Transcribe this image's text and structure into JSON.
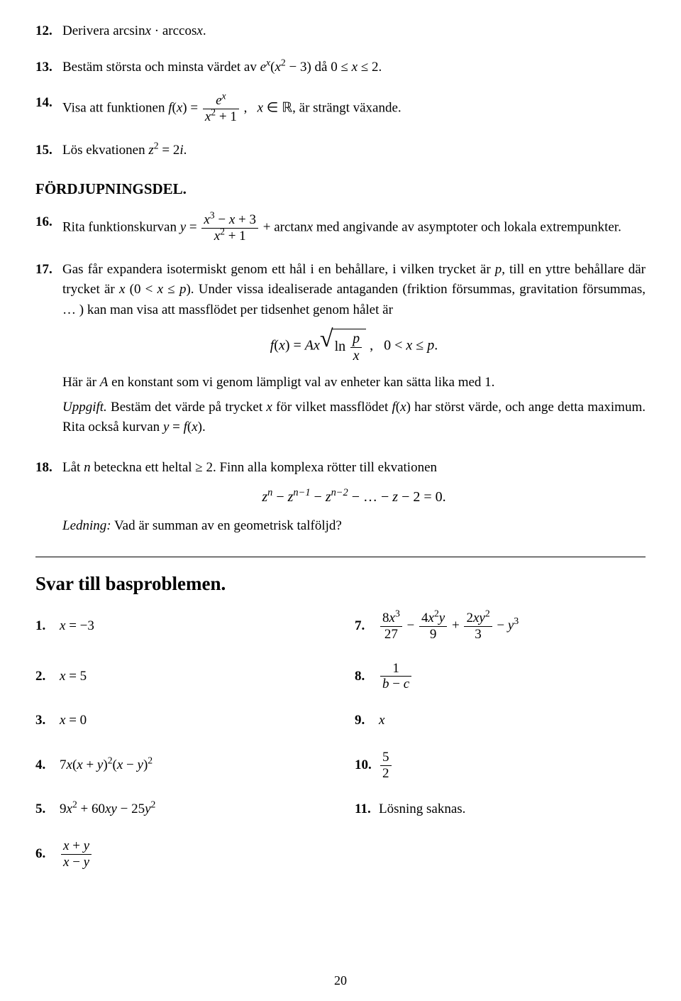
{
  "problems": [
    {
      "num": "12.",
      "text_before": "Derivera ",
      "expr": "arcsin<span class='math'>x</span> · arccos<span class='math'>x</span>."
    },
    {
      "num": "13.",
      "text": "Bestäm största och minsta värdet av <span class='math'>e<sup>x</sup></span>(<span class='math'>x</span><sup>2</sup> − 3) då 0 ≤ <span class='math'>x</span> ≤ 2."
    },
    {
      "num": "14.",
      "text": "Visa att funktionen <span class='math'>f</span>(<span class='math'>x</span>) = <span class='frac'><span class='num'><span class='math'>e<sup>x</sup></span></span><span class='den'><span class='math'>x</span><sup>2</sup> + 1</span></span> ,&nbsp;&nbsp; <span class='math'>x</span> ∈ ℝ, är strängt växande."
    },
    {
      "num": "15.",
      "text": "Lös ekvationen <span class='math'>z</span><sup>2</sup> = 2<span class='math'>i</span>."
    }
  ],
  "section_heading": "FÖRDJUPNINGSDEL.",
  "deep_problems": [
    {
      "num": "16.",
      "text": "Rita funktionskurvan <span class='math'>y</span> = <span class='frac'><span class='num'><span class='math'>x</span><sup>3</sup> − <span class='math'>x</span> + 3</span><span class='den'><span class='math'>x</span><sup>2</sup> + 1</span></span> + arctan<span class='math'>x</span> med angivande av asymptoter och lokala extrempunkter."
    },
    {
      "num": "17.",
      "paras": [
        "Gas får expandera isotermiskt genom ett hål i en behållare, i vilken trycket är <span class='math'>p</span>, till en yttre behållare där trycket är <span class='math'>x</span> (0 &lt; <span class='math'>x</span> ≤ <span class='math'>p</span>). Under vissa idealiserade antaganden (friktion försummas, gravitation försummas, … ) kan man visa att massflödet per tidsenhet genom hålet är"
      ],
      "display": "<span class='math'>f</span>(<span class='math'>x</span>) = <span class='math'>Ax</span><span class='sqrt'><span class='rad'>√</span><span class='body'>ln <span class='frac'><span class='num'><span class='math'>p</span></span><span class='den'><span class='math'>x</span></span></span></span></span> ,&nbsp;&nbsp; 0 &lt; <span class='math'>x</span> ≤ <span class='math'>p</span>.",
      "after": [
        "Här är <span class='math'>A</span> en konstant som vi genom lämpligt val av enheter kan sätta lika med 1.",
        "<span class='math'>Uppgift.</span> Bestäm det värde på trycket <span class='math'>x</span> för vilket massflödet <span class='math'>f</span>(<span class='math'>x</span>) har störst värde, och ange detta maximum. Rita också kurvan <span class='math'>y</span> = <span class='math'>f</span>(<span class='math'>x</span>)."
      ]
    },
    {
      "num": "18.",
      "text": "Låt <span class='math'>n</span> beteckna ett heltal ≥ 2. Finn alla komplexa rötter till ekvationen",
      "display": "<span class='math'>z<sup>n</sup></span> − <span class='math'>z<sup>n−1</sup></span> − <span class='math'>z<sup>n−2</sup></span> − … − <span class='math'>z</span> − 2 = 0.",
      "hint_label": "Ledning:",
      "hint_text": " Vad är summan av en geometrisk talföljd?"
    }
  ],
  "answers_heading": "Svar till basproblemen.",
  "answers_left": [
    {
      "num": "1.",
      "html": "<span class='math'>x</span> = −3"
    },
    {
      "num": "2.",
      "html": "<span class='math'>x</span> = 5"
    },
    {
      "num": "3.",
      "html": "<span class='math'>x</span> = 0"
    },
    {
      "num": "4.",
      "html": "7<span class='math'>x</span>(<span class='math'>x</span> + <span class='math'>y</span>)<sup>2</sup>(<span class='math'>x</span> − <span class='math'>y</span>)<sup>2</sup>"
    },
    {
      "num": "5.",
      "html": "9<span class='math'>x</span><sup>2</sup> + 60<span class='math'>xy</span> − 25<span class='math'>y</span><sup>2</sup>"
    },
    {
      "num": "6.",
      "html": "<span class='frac'><span class='num'><span class='math'>x</span> + <span class='math'>y</span></span><span class='den'><span class='math'>x</span> − <span class='math'>y</span></span></span>"
    }
  ],
  "answers_right": [
    {
      "num": "7.",
      "html": "<span class='frac'><span class='num'>8<span class='math'>x</span><sup>3</sup></span><span class='den'>27</span></span> − <span class='frac'><span class='num'>4<span class='math'>x</span><sup>2</sup><span class='math'>y</span></span><span class='den'>9</span></span> + <span class='frac'><span class='num'>2<span class='math'>xy</span><sup>2</sup></span><span class='den'>3</span></span> − <span class='math'>y</span><sup>3</sup>"
    },
    {
      "num": "8.",
      "html": "<span class='frac'><span class='num'>1</span><span class='den'><span class='math'>b</span> − <span class='math'>c</span></span></span>"
    },
    {
      "num": "9.",
      "html": "<span class='math'>x</span>"
    },
    {
      "num": "10.",
      "html": "<span class='frac'><span class='num'>5</span><span class='den'>2</span></span>"
    },
    {
      "num": "11.",
      "html": "Lösning saknas."
    }
  ],
  "page_number": "20"
}
